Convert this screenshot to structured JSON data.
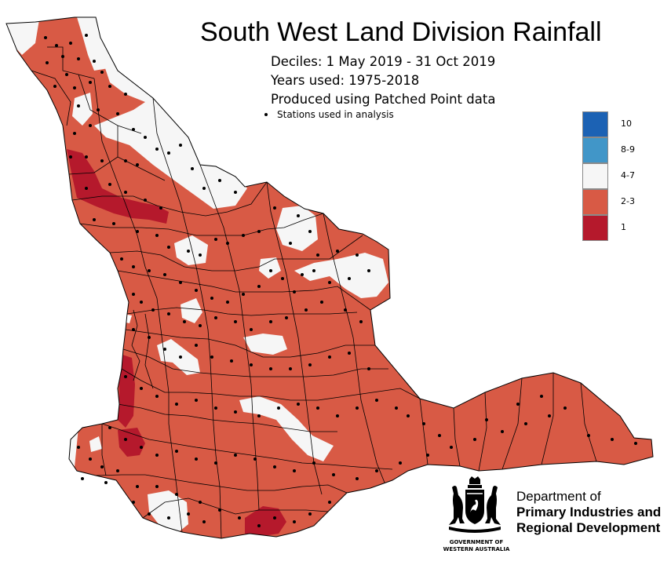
{
  "title": "South West Land Division Rainfall",
  "subtitle_lines": [
    "Deciles:  1 May 2019 - 31 Oct 2019",
    "Years used: 1975-2018",
    "Produced using Patched Point data"
  ],
  "stations_legend": "Stations used in analysis",
  "legend": [
    {
      "label": "10",
      "color": "#1c62b4"
    },
    {
      "label": "8-9",
      "color": "#4196c8"
    },
    {
      "label": "4-7",
      "color": "#f6f6f6"
    },
    {
      "label": "2-3",
      "color": "#d85a45"
    },
    {
      "label": "1",
      "color": "#b5192c"
    }
  ],
  "department": {
    "line1": "Department of",
    "line2": "Primary Industries and",
    "line3": "Regional Development"
  },
  "government": {
    "line1": "GOVERNMENT OF",
    "line2": "WESTERN AUSTRALIA"
  },
  "colors": {
    "decile_2_3": "#d85a45",
    "decile_1": "#b5192c",
    "decile_4_7": "#f6f6f6",
    "boundary": "#000000"
  }
}
